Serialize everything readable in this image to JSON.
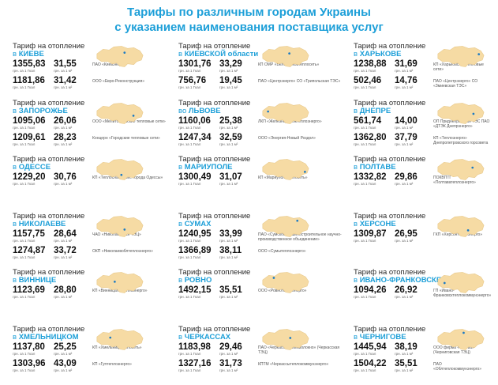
{
  "title": {
    "line1": "Тарифы по различным городам Украины",
    "line2": "с указанием наименования поставщика услуг"
  },
  "label_prefix": "Тариф на отопление",
  "unit_gcal": "грн. за 1 Гкал",
  "unit_m2": "грн. за 1 м²",
  "colors": {
    "accent": "#1d9fd8",
    "map_fill": "#f6dba4",
    "dot": "#1a7ac4"
  },
  "cities": [
    {
      "pre": "в",
      "name": "КИЕВЕ",
      "rows": [
        {
          "gcal": "1355,83",
          "m2": "31,55",
          "provider": "ПАО «Киевэнерго»"
        },
        {
          "gcal": "1181,86",
          "m2": "31,42",
          "provider": "ООО «Евро-Реконструкция»"
        }
      ],
      "dot": [
        0.62,
        0.3
      ]
    },
    {
      "pre": "в",
      "name": "КИЕВСКОЙ области",
      "rows": [
        {
          "gcal": "1301,76",
          "m2": "33,29",
          "provider": "КП ОМР «Белоцерковтеплосеть»"
        },
        {
          "gcal": "756,76",
          "m2": "19,45",
          "provider": "ПАО «Центрэнерго» СО «Трипольская ТЭС»"
        }
      ],
      "dot": [
        0.6,
        0.34
      ]
    },
    {
      "pre": "в",
      "name": "ХАРЬКОВЕ",
      "rows": [
        {
          "gcal": "1238,88",
          "m2": "31,69",
          "provider": "КП «Харьковские тепловые сети»"
        },
        {
          "gcal": "502,46",
          "m2": "14,76",
          "provider": "ПАО «Центрэнерго» СО «Змиевская ТЭС»"
        }
      ],
      "dot": [
        0.92,
        0.38
      ]
    },
    {
      "pre": "в",
      "name": "ЗАПОРОЖЬЕ",
      "rows": [
        {
          "gcal": "1095,06",
          "m2": "26,06",
          "provider": "ООО «Мелитопольские тепловые сети»"
        },
        {
          "gcal": "1209,61",
          "m2": "28,23",
          "provider": "Концерн «Городские тепловые сети»"
        }
      ],
      "dot": [
        0.82,
        0.62
      ]
    },
    {
      "pre": "во",
      "name": "ЛЬВОВЕ",
      "rows": [
        {
          "gcal": "1160,06",
          "m2": "25,38",
          "provider": "ЛКП «Железнодорожтеплоэнерго»"
        },
        {
          "gcal": "1247,34",
          "m2": "32,59",
          "provider": "ООО «Энергия-Новый Роздол»"
        }
      ],
      "dot": [
        0.12,
        0.4
      ]
    },
    {
      "pre": "в",
      "name": "ДНЕПРЕ",
      "rows": [
        {
          "gcal": "561,74",
          "m2": "14,00",
          "provider": "ОП Приднепровская ТЭС ПАО «ДТЭК Днепрэнерго»"
        },
        {
          "gcal": "1362,80",
          "m2": "37,79",
          "provider": "КП «Теплоэнерго» Днепропетровского горсовета"
        }
      ],
      "dot": [
        0.8,
        0.52
      ]
    },
    {
      "pre": "в",
      "name": "ОДЕССЕ",
      "rows": [
        {
          "gcal": "1229,20",
          "m2": "30,76",
          "provider": "КП «Теплоснабжение города Одессы»"
        }
      ],
      "dot": [
        0.55,
        0.78
      ]
    },
    {
      "pre": "в",
      "name": "МАРИУПОЛЕ",
      "rows": [
        {
          "gcal": "1300,49",
          "m2": "31,07",
          "provider": "КП «Мариупольтеплосеть»"
        }
      ],
      "dot": [
        0.95,
        0.62
      ]
    },
    {
      "pre": "в",
      "name": "ПОЛТАВЕ",
      "rows": [
        {
          "gcal": "1332,82",
          "m2": "29,86",
          "provider": "ПОКВПТГ «Полтаватеплоэнерго»"
        }
      ],
      "dot": [
        0.78,
        0.4
      ]
    },
    {
      "pre": "в",
      "name": "НИКОЛАЕВЕ",
      "rows": [
        {
          "gcal": "1157,75",
          "m2": "28,64",
          "provider": "ЧАО «Николаевская ТЭЦ»"
        },
        {
          "gcal": "1274,87",
          "m2": "33,72",
          "provider": "ОКП «Николаевоблтеплоэнерго»"
        }
      ],
      "dot": [
        0.62,
        0.66
      ]
    },
    {
      "pre": "в",
      "name": "СУМАХ",
      "rows": [
        {
          "gcal": "1240,95",
          "m2": "33,99",
          "provider": "ПАО «Сумское машиностроительное научно-производственное объединение»"
        },
        {
          "gcal": "1366,89",
          "m2": "38,11",
          "provider": "ООО «Сумытеплоэнерго»"
        }
      ],
      "dot": [
        0.78,
        0.2
      ]
    },
    {
      "pre": "в",
      "name": "ХЕРСОНЕ",
      "rows": [
        {
          "gcal": "1309,87",
          "m2": "26,95",
          "provider": "ГКП «Херсонтеплоэнерго»"
        }
      ],
      "dot": [
        0.68,
        0.7
      ]
    },
    {
      "pre": "в",
      "name": "ВИННИЦЕ",
      "rows": [
        {
          "gcal": "1123,69",
          "m2": "28,80",
          "provider": "КП «Винницагортеплоэнерго»"
        }
      ],
      "dot": [
        0.4,
        0.45
      ]
    },
    {
      "pre": "в",
      "name": "РОВНО",
      "rows": [
        {
          "gcal": "1492,15",
          "m2": "35,51",
          "provider": "ООО «Ровнотеплоэнерго»"
        }
      ],
      "dot": [
        0.25,
        0.25
      ]
    },
    {
      "pre": "в",
      "name": "ИВАНО-ФРАНКОВСКЕ",
      "rows": [
        {
          "gcal": "1094,26",
          "m2": "26,92",
          "provider": "ГП «Ивано-Франковсктеплокоммунэнерго»"
        }
      ],
      "dot": [
        0.15,
        0.52
      ]
    },
    {
      "pre": "в",
      "name": "ХМЕЛЬНИЦКОМ",
      "rows": [
        {
          "gcal": "1137,80",
          "m2": "25,25",
          "provider": "КП «Хмельницктеплосеть»"
        },
        {
          "gcal": "1303,96",
          "m2": "43,09",
          "provider": "КП «Гуптеплоэнерго»"
        }
      ],
      "dot": [
        0.3,
        0.4
      ]
    },
    {
      "pre": "в",
      "name": "ЧЕРКАССАХ",
      "rows": [
        {
          "gcal": "1183,98",
          "m2": "29,46",
          "provider": "ПАО «Черкасское химволокно» (Черкасская ТЭЦ)"
        },
        {
          "gcal": "1327,16",
          "m2": "31,73",
          "provider": "КПТМ «Черкассытеплокоммунэнерго»"
        }
      ],
      "dot": [
        0.62,
        0.42
      ]
    },
    {
      "pre": "в",
      "name": "ЧЕРНИГОВЕ",
      "rows": [
        {
          "gcal": "1445,94",
          "m2": "38,19",
          "provider": "ООО фирма «Техова» (Черниговская ТЭЦ)"
        },
        {
          "gcal": "1504,22",
          "m2": "35,51",
          "provider": "ПАО «Облтеплокоммунэнерго»"
        }
      ],
      "dot": [
        0.58,
        0.15
      ]
    }
  ]
}
